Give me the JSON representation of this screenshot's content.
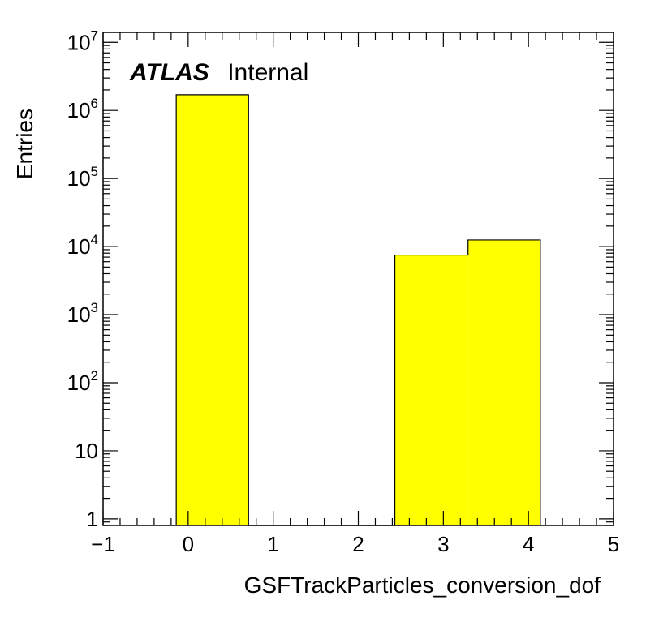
{
  "chart_data": {
    "type": "bar",
    "subtype": "histogram",
    "xlabel": "GSFTrackParticles_conversion_dof",
    "ylabel": "Entries",
    "xlim": [
      -1,
      5
    ],
    "ylim": [
      0.8,
      14000000
    ],
    "yscale": "log",
    "grid": false,
    "label": {
      "experiment": "ATLAS",
      "status": "Internal"
    },
    "bar_color": "#ffff00",
    "x_ticks": [
      "−1",
      "0",
      "1",
      "2",
      "3",
      "4",
      "5"
    ],
    "x_tick_values": [
      -1,
      0,
      1,
      2,
      3,
      4,
      5
    ],
    "y_ticks": [
      {
        "value": 1,
        "base": "1",
        "exp": ""
      },
      {
        "value": 10,
        "base": "10",
        "exp": ""
      },
      {
        "value": 100,
        "base": "10",
        "exp": "2"
      },
      {
        "value": 1000,
        "base": "10",
        "exp": "3"
      },
      {
        "value": 10000,
        "base": "10",
        "exp": "4"
      },
      {
        "value": 100000,
        "base": "10",
        "exp": "5"
      },
      {
        "value": 1000000,
        "base": "10",
        "exp": "6"
      },
      {
        "value": 10000000,
        "base": "10",
        "exp": "7"
      }
    ],
    "bins": [
      {
        "low": -0.14,
        "high": 0.71,
        "value": 1700000
      },
      {
        "low": 0.71,
        "high": 1.57,
        "value": 0
      },
      {
        "low": 1.57,
        "high": 2.43,
        "value": 0
      },
      {
        "low": 2.43,
        "high": 3.29,
        "value": 7500
      },
      {
        "low": 3.29,
        "high": 4.14,
        "value": 12500
      }
    ]
  }
}
